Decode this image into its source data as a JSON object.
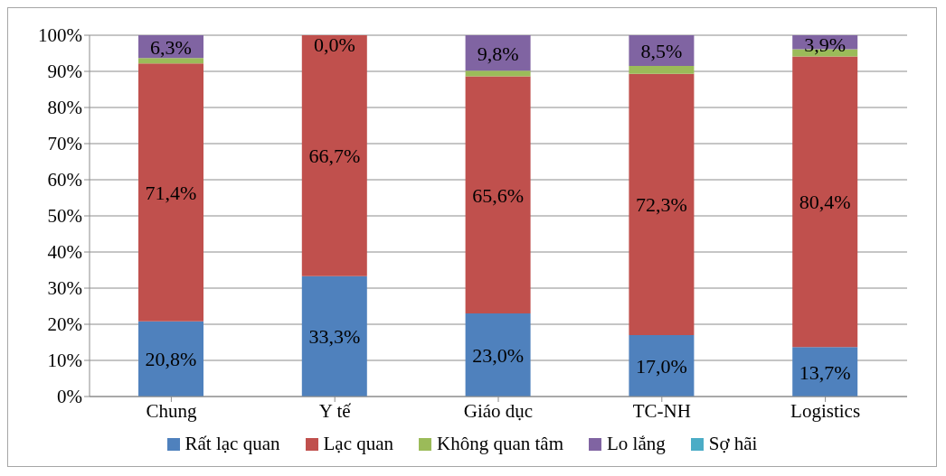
{
  "chart_data": {
    "type": "bar",
    "stacked": true,
    "categories": [
      "Chung",
      "Y tế",
      "Giáo dục",
      "TC-NH",
      "Logistics"
    ],
    "series": [
      {
        "name": "Rất lạc quan",
        "color": "#4f81bd",
        "values": [
          20.8,
          33.3,
          23.0,
          17.0,
          13.7
        ],
        "value_labels": [
          "20,8%",
          "33,3%",
          "23,0%",
          "17,0%",
          "13,7%"
        ]
      },
      {
        "name": "Lạc quan",
        "color": "#c0504d",
        "values": [
          71.4,
          66.7,
          65.6,
          72.3,
          80.4
        ],
        "value_labels": [
          "71,4%",
          "66,7%",
          "65,6%",
          "72,3%",
          "80,4%"
        ]
      },
      {
        "name": "Không quan tâm",
        "color": "#9bbb59",
        "values": [
          1.5,
          0,
          1.6,
          2.2,
          2.0
        ]
      },
      {
        "name": "Lo lắng",
        "color": "#8064a2",
        "values": [
          6.3,
          0,
          9.8,
          8.5,
          3.9
        ],
        "value_labels": [
          "6,3%",
          "0,0%",
          "9,8%",
          "8,5%",
          "3,9%"
        ]
      },
      {
        "name": "Sợ hãi",
        "color": "#4bacc6",
        "values": [
          0,
          0,
          0,
          0,
          0
        ]
      }
    ],
    "ylim": [
      0,
      100
    ],
    "yticks": [
      {
        "value": 0,
        "label": "0%"
      },
      {
        "value": 10,
        "label": "10%"
      },
      {
        "value": 20,
        "label": "20%"
      },
      {
        "value": 30,
        "label": "30%"
      },
      {
        "value": 40,
        "label": "40%"
      },
      {
        "value": 50,
        "label": "50%"
      },
      {
        "value": 60,
        "label": "60%"
      },
      {
        "value": 70,
        "label": "70%"
      },
      {
        "value": 80,
        "label": "80%"
      },
      {
        "value": 90,
        "label": "90%"
      },
      {
        "value": 100,
        "label": "100%"
      }
    ],
    "grid": "y",
    "legend": "bottom"
  }
}
